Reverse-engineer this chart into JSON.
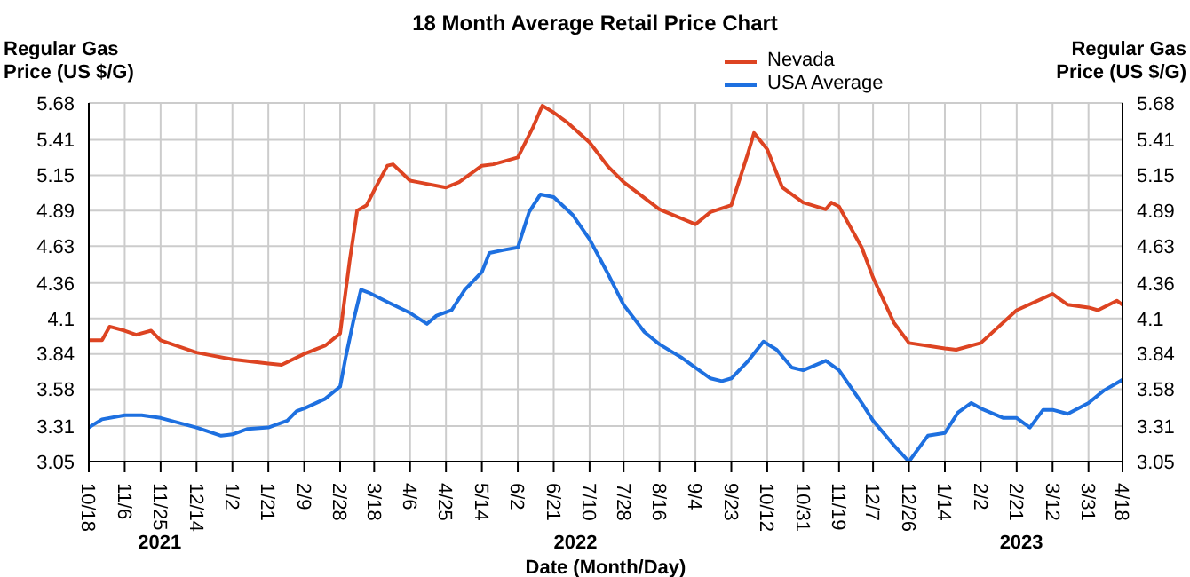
{
  "chart_data": {
    "type": "line",
    "title": "18 Month Average Retail Price Chart",
    "xlabel": "Date (Month/Day)",
    "ylabel": "Regular Gas Price (US $/G)",
    "y2label": "Regular Gas Price (US $/G)",
    "annotations": [
      "2021",
      "2022",
      "2023"
    ],
    "xlim": [
      "2021-10-18",
      "2023-04-18"
    ],
    "xticks": [
      {
        "value": "2021-10-18",
        "label": "10/18"
      },
      {
        "value": "2021-11-06",
        "label": "11/6"
      },
      {
        "value": "2021-11-25",
        "label": "11/25"
      },
      {
        "value": "2021-12-14",
        "label": "12/14"
      },
      {
        "value": "2022-01-02",
        "label": "1/2"
      },
      {
        "value": "2022-01-21",
        "label": "1/21"
      },
      {
        "value": "2022-02-09",
        "label": "2/9"
      },
      {
        "value": "2022-02-28",
        "label": "2/28"
      },
      {
        "value": "2022-03-18",
        "label": "3/18"
      },
      {
        "value": "2022-04-06",
        "label": "4/6"
      },
      {
        "value": "2022-04-25",
        "label": "4/25"
      },
      {
        "value": "2022-05-14",
        "label": "5/14"
      },
      {
        "value": "2022-06-02",
        "label": "6/2"
      },
      {
        "value": "2022-06-21",
        "label": "6/21"
      },
      {
        "value": "2022-07-10",
        "label": "7/10"
      },
      {
        "value": "2022-07-28",
        "label": "7/28"
      },
      {
        "value": "2022-08-16",
        "label": "8/16"
      },
      {
        "value": "2022-09-04",
        "label": "9/4"
      },
      {
        "value": "2022-09-23",
        "label": "9/23"
      },
      {
        "value": "2022-10-12",
        "label": "10/12"
      },
      {
        "value": "2022-10-31",
        "label": "10/31"
      },
      {
        "value": "2022-11-19",
        "label": "11/19"
      },
      {
        "value": "2022-12-07",
        "label": "12/7"
      },
      {
        "value": "2022-12-26",
        "label": "12/26"
      },
      {
        "value": "2023-01-14",
        "label": "1/14"
      },
      {
        "value": "2023-02-02",
        "label": "2/2"
      },
      {
        "value": "2023-02-21",
        "label": "2/21"
      },
      {
        "value": "2023-03-12",
        "label": "3/12"
      },
      {
        "value": "2023-03-31",
        "label": "3/31"
      },
      {
        "value": "2023-04-18",
        "label": "4/18"
      }
    ],
    "ylim": [
      3.05,
      5.68
    ],
    "yticks": [
      3.05,
      3.31,
      3.58,
      3.84,
      4.1,
      4.36,
      4.63,
      4.89,
      5.15,
      5.41,
      5.68
    ],
    "y2lim": [
      3.05,
      5.68
    ],
    "y2ticks": [
      3.05,
      3.31,
      3.58,
      3.84,
      4.1,
      4.36,
      4.63,
      4.89,
      5.15,
      5.41,
      5.68
    ],
    "grid": true,
    "legend": "top",
    "marker": "none",
    "line_style": "solid",
    "series": [
      {
        "name": "Nevada",
        "color": "#dd4422",
        "x": [
          "2021-10-18",
          "2021-10-25",
          "2021-10-29",
          "2021-11-06",
          "2021-11-12",
          "2021-11-20",
          "2021-11-25",
          "2021-12-14",
          "2022-01-02",
          "2022-01-21",
          "2022-01-28",
          "2022-02-09",
          "2022-02-20",
          "2022-02-28",
          "2022-03-05",
          "2022-03-09",
          "2022-03-14",
          "2022-03-18",
          "2022-03-25",
          "2022-03-28",
          "2022-04-06",
          "2022-04-10",
          "2022-04-25",
          "2022-05-02",
          "2022-05-14",
          "2022-05-20",
          "2022-06-02",
          "2022-06-10",
          "2022-06-15",
          "2022-06-21",
          "2022-06-28",
          "2022-07-10",
          "2022-07-20",
          "2022-07-28",
          "2022-08-16",
          "2022-09-04",
          "2022-09-12",
          "2022-09-23",
          "2022-10-02",
          "2022-10-05",
          "2022-10-12",
          "2022-10-20",
          "2022-10-31",
          "2022-11-12",
          "2022-11-15",
          "2022-11-19",
          "2022-12-01",
          "2022-12-07",
          "2022-12-18",
          "2022-12-26",
          "2023-01-14",
          "2023-01-20",
          "2023-02-02",
          "2023-02-21",
          "2023-03-12",
          "2023-03-20",
          "2023-03-31",
          "2023-04-05",
          "2023-04-15",
          "2023-04-18"
        ],
        "values": [
          3.94,
          3.94,
          4.04,
          4.01,
          3.98,
          4.01,
          3.94,
          3.85,
          3.8,
          3.77,
          3.76,
          3.84,
          3.9,
          3.99,
          4.52,
          4.89,
          4.93,
          5.04,
          5.22,
          5.23,
          5.11,
          5.1,
          5.06,
          5.1,
          5.22,
          5.23,
          5.28,
          5.5,
          5.66,
          5.61,
          5.54,
          5.39,
          5.21,
          5.1,
          4.9,
          4.79,
          4.88,
          4.93,
          5.32,
          5.46,
          5.34,
          5.06,
          4.95,
          4.9,
          4.95,
          4.92,
          4.62,
          4.4,
          4.07,
          3.92,
          3.88,
          3.87,
          3.92,
          4.16,
          4.28,
          4.2,
          4.18,
          4.16,
          4.23,
          4.2
        ]
      },
      {
        "name": "USA Average",
        "color": "#1e70e0",
        "x": [
          "2021-10-18",
          "2021-10-25",
          "2021-11-06",
          "2021-11-15",
          "2021-11-25",
          "2021-12-14",
          "2021-12-27",
          "2022-01-02",
          "2022-01-10",
          "2022-01-21",
          "2022-01-31",
          "2022-02-05",
          "2022-02-09",
          "2022-02-20",
          "2022-02-28",
          "2022-03-03",
          "2022-03-07",
          "2022-03-11",
          "2022-03-15",
          "2022-03-25",
          "2022-04-06",
          "2022-04-15",
          "2022-04-20",
          "2022-04-28",
          "2022-05-05",
          "2022-05-14",
          "2022-05-18",
          "2022-05-25",
          "2022-06-02",
          "2022-06-08",
          "2022-06-14",
          "2022-06-21",
          "2022-07-01",
          "2022-07-10",
          "2022-07-20",
          "2022-07-28",
          "2022-08-08",
          "2022-08-16",
          "2022-08-28",
          "2022-09-04",
          "2022-09-12",
          "2022-09-18",
          "2022-09-23",
          "2022-10-02",
          "2022-10-10",
          "2022-10-17",
          "2022-10-25",
          "2022-10-31",
          "2022-11-12",
          "2022-11-19",
          "2022-12-01",
          "2022-12-07",
          "2022-12-18",
          "2022-12-26",
          "2023-01-05",
          "2023-01-14",
          "2023-01-21",
          "2023-01-28",
          "2023-02-02",
          "2023-02-14",
          "2023-02-21",
          "2023-02-28",
          "2023-03-07",
          "2023-03-12",
          "2023-03-20",
          "2023-03-31",
          "2023-04-08",
          "2023-04-18"
        ],
        "values": [
          3.3,
          3.36,
          3.39,
          3.39,
          3.37,
          3.3,
          3.24,
          3.25,
          3.29,
          3.3,
          3.35,
          3.42,
          3.44,
          3.51,
          3.6,
          3.82,
          4.08,
          4.31,
          4.29,
          4.22,
          4.14,
          4.06,
          4.12,
          4.16,
          4.31,
          4.44,
          4.58,
          4.6,
          4.62,
          4.88,
          5.01,
          4.99,
          4.86,
          4.68,
          4.42,
          4.2,
          4.0,
          3.91,
          3.81,
          3.74,
          3.66,
          3.64,
          3.66,
          3.79,
          3.93,
          3.87,
          3.74,
          3.72,
          3.79,
          3.72,
          3.48,
          3.35,
          3.17,
          3.05,
          3.24,
          3.26,
          3.41,
          3.48,
          3.44,
          3.37,
          3.37,
          3.3,
          3.43,
          3.43,
          3.4,
          3.48,
          3.57,
          3.65
        ]
      }
    ]
  }
}
